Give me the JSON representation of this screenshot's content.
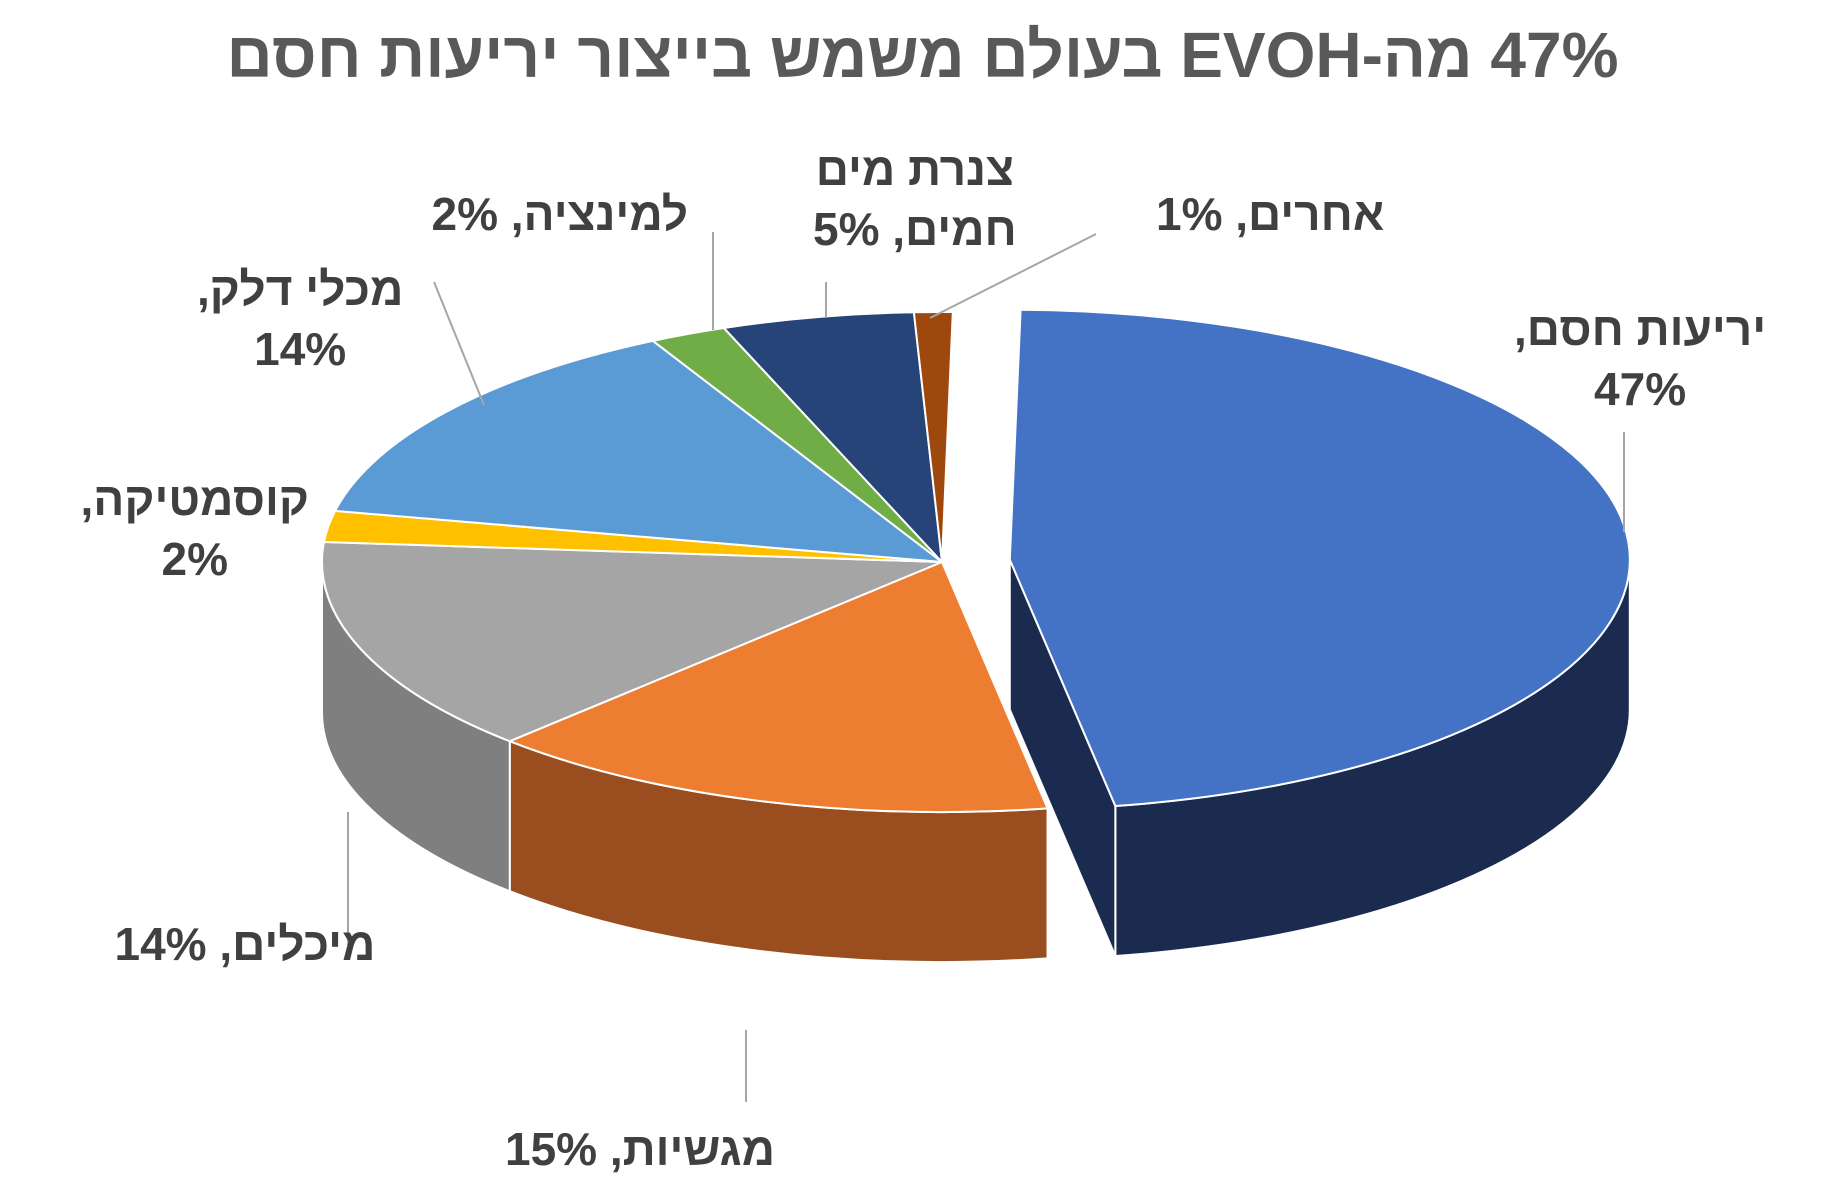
{
  "chart_data": {
    "type": "pie",
    "title": "47% מה-EVOH בעולם משמש בייצור יריעות חסם",
    "slices": [
      {
        "name": "יריעות חסם",
        "value": 47,
        "label": "יריעות חסם,\n47%",
        "color": "#4472C4",
        "side_color": "#1B2B4F",
        "exploded": true
      },
      {
        "name": "מגשיות",
        "value": 15,
        "label": "מגשיות, 15%",
        "color": "#ED7D31",
        "side_color": "#9A4E1F"
      },
      {
        "name": "מיכלים",
        "value": 14,
        "label": "מיכלים, 14%",
        "color": "#A5A5A5",
        "side_color": "#7F7F7F"
      },
      {
        "name": "קוסמטיקה",
        "value": 2,
        "label": "קוסמטיקה,\n2%",
        "color": "#FFC000",
        "side_color": "#B38700"
      },
      {
        "name": "מכלי דלק",
        "value": 14,
        "label": "מכלי דלק,\n14%",
        "color": "#5B9BD5",
        "side_color": "#3A6A96"
      },
      {
        "name": "למינציה",
        "value": 2,
        "label": "למינציה, 2%",
        "color": "#70AD47",
        "side_color": "#4E7A31"
      },
      {
        "name": "צנרת מים חמים",
        "value": 5,
        "label": "צנרת מים\nחמים, 5%",
        "color": "#264478",
        "side_color": "#172A4A"
      },
      {
        "name": "אחרים",
        "value": 1,
        "label": "אחרים, 1%",
        "color": "#9E480E",
        "side_color": "#6B3009"
      }
    ]
  }
}
